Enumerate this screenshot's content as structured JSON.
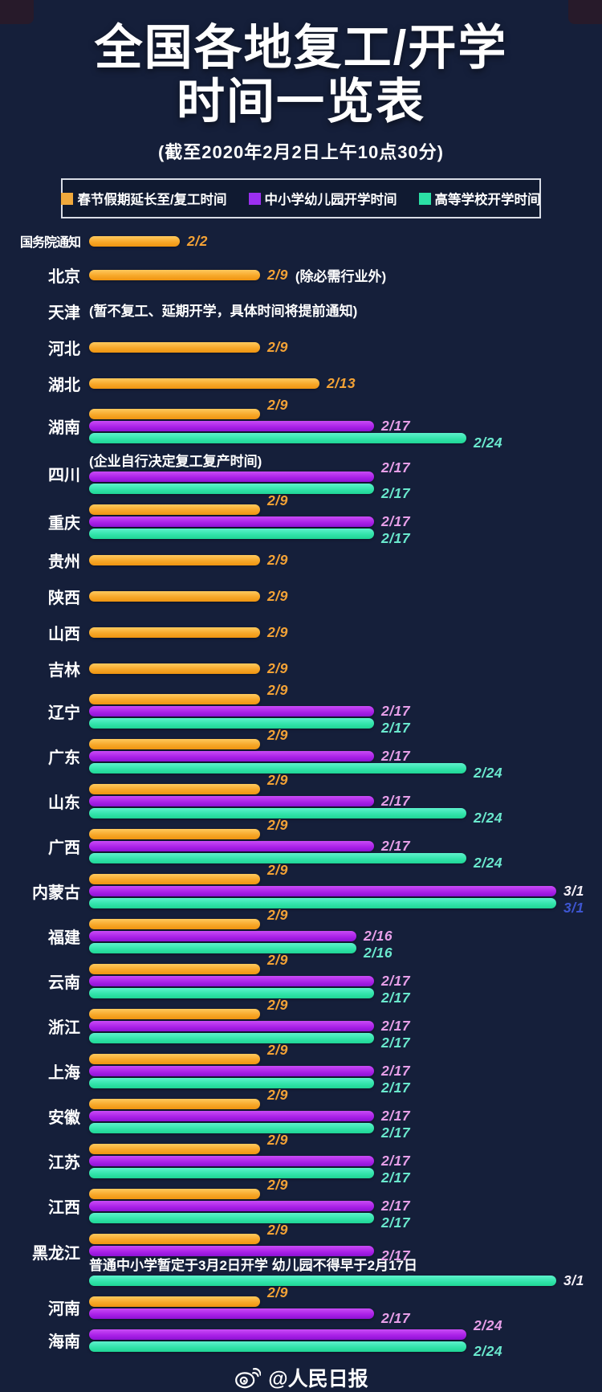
{
  "header": {
    "title_line1": "全国各地复工/开学",
    "title_line2": "时间一览表",
    "subtitle": "(截至2020年2月2日上午10点30分)"
  },
  "footer": {
    "credit": "@人民日报",
    "icon": "weibo-icon"
  },
  "colors": {
    "background": "#151f3a",
    "resume_bar": "#f7a82a",
    "school_bar": "#ab22e8",
    "college_bar": "#2ee3a9",
    "resume_label": "#f3a236",
    "school_label": "#e79fe8",
    "college_label": "#6ae8cd",
    "white_label": "#f3eef6",
    "blue_label": "#3d55cf"
  },
  "chart_data": {
    "type": "bar",
    "title": "全国各地复工/开学时间一览表",
    "as_of": "截至2020年2月2日上午10点30分",
    "legend_position": "top",
    "x_axis_range": [
      "2/2",
      "3/1"
    ],
    "series_legend": [
      {
        "key": "resume",
        "name": "春节假期延长至/复工时间",
        "color": "#f0a93c"
      },
      {
        "key": "school",
        "name": "中小学幼儿园开学时间",
        "color": "#9b2ff0"
      },
      {
        "key": "college",
        "name": "高等学校开学时间",
        "color": "#2be0a5"
      }
    ],
    "rows": [
      {
        "region": "国务院通知",
        "lines": [
          {
            "type": "bar",
            "series": "resume",
            "date": "2/2"
          }
        ]
      },
      {
        "region": "北京",
        "lines": [
          {
            "type": "bar",
            "series": "resume",
            "date": "2/9",
            "suffix": "(除必需行业外)"
          }
        ]
      },
      {
        "region": "天津",
        "lines": [
          {
            "type": "note",
            "text": "(暂不复工、延期开学，具体时间将提前通知)"
          }
        ]
      },
      {
        "region": "河北",
        "lines": [
          {
            "type": "bar",
            "series": "resume",
            "date": "2/9"
          }
        ]
      },
      {
        "region": "湖北",
        "lines": [
          {
            "type": "bar",
            "series": "resume",
            "date": "2/13"
          }
        ]
      },
      {
        "region": "湖南",
        "lines": [
          {
            "type": "bar",
            "series": "resume",
            "date": "2/9"
          },
          {
            "type": "bar",
            "series": "school",
            "date": "2/17"
          },
          {
            "type": "bar",
            "series": "college",
            "date": "2/24"
          }
        ]
      },
      {
        "region": "四川",
        "lines": [
          {
            "type": "note",
            "text": "(企业自行决定复工复产时间)"
          },
          {
            "type": "bar",
            "series": "school",
            "date": "2/17"
          },
          {
            "type": "bar",
            "series": "college",
            "date": "2/17"
          }
        ]
      },
      {
        "region": "重庆",
        "lines": [
          {
            "type": "bar",
            "series": "resume",
            "date": "2/9"
          },
          {
            "type": "bar",
            "series": "school",
            "date": "2/17"
          },
          {
            "type": "bar",
            "series": "college",
            "date": "2/17"
          }
        ]
      },
      {
        "region": "贵州",
        "lines": [
          {
            "type": "bar",
            "series": "resume",
            "date": "2/9"
          }
        ]
      },
      {
        "region": "陕西",
        "lines": [
          {
            "type": "bar",
            "series": "resume",
            "date": "2/9"
          }
        ]
      },
      {
        "region": "山西",
        "lines": [
          {
            "type": "bar",
            "series": "resume",
            "date": "2/9"
          }
        ]
      },
      {
        "region": "吉林",
        "lines": [
          {
            "type": "bar",
            "series": "resume",
            "date": "2/9"
          }
        ]
      },
      {
        "region": "辽宁",
        "lines": [
          {
            "type": "bar",
            "series": "resume",
            "date": "2/9"
          },
          {
            "type": "bar",
            "series": "school",
            "date": "2/17"
          },
          {
            "type": "bar",
            "series": "college",
            "date": "2/17"
          }
        ]
      },
      {
        "region": "广东",
        "lines": [
          {
            "type": "bar",
            "series": "resume",
            "date": "2/9"
          },
          {
            "type": "bar",
            "series": "school",
            "date": "2/17"
          },
          {
            "type": "bar",
            "series": "college",
            "date": "2/24"
          }
        ]
      },
      {
        "region": "山东",
        "lines": [
          {
            "type": "bar",
            "series": "resume",
            "date": "2/9"
          },
          {
            "type": "bar",
            "series": "school",
            "date": "2/17"
          },
          {
            "type": "bar",
            "series": "college",
            "date": "2/24"
          }
        ]
      },
      {
        "region": "广西",
        "lines": [
          {
            "type": "bar",
            "series": "resume",
            "date": "2/9"
          },
          {
            "type": "bar",
            "series": "school",
            "date": "2/17"
          },
          {
            "type": "bar",
            "series": "college",
            "date": "2/24"
          }
        ]
      },
      {
        "region": "内蒙古",
        "lines": [
          {
            "type": "bar",
            "series": "resume",
            "date": "2/9"
          },
          {
            "type": "bar",
            "series": "school",
            "date": "3/1",
            "label_color": "white"
          },
          {
            "type": "bar",
            "series": "college",
            "date": "3/1",
            "label_color": "blue"
          }
        ]
      },
      {
        "region": "福建",
        "lines": [
          {
            "type": "bar",
            "series": "resume",
            "date": "2/9"
          },
          {
            "type": "bar",
            "series": "school",
            "date": "2/16"
          },
          {
            "type": "bar",
            "series": "college",
            "date": "2/16"
          }
        ]
      },
      {
        "region": "云南",
        "lines": [
          {
            "type": "bar",
            "series": "resume",
            "date": "2/9"
          },
          {
            "type": "bar",
            "series": "school",
            "date": "2/17"
          },
          {
            "type": "bar",
            "series": "college",
            "date": "2/17"
          }
        ]
      },
      {
        "region": "浙江",
        "lines": [
          {
            "type": "bar",
            "series": "resume",
            "date": "2/9"
          },
          {
            "type": "bar",
            "series": "school",
            "date": "2/17"
          },
          {
            "type": "bar",
            "series": "college",
            "date": "2/17"
          }
        ]
      },
      {
        "region": "上海",
        "lines": [
          {
            "type": "bar",
            "series": "resume",
            "date": "2/9"
          },
          {
            "type": "bar",
            "series": "school",
            "date": "2/17"
          },
          {
            "type": "bar",
            "series": "college",
            "date": "2/17"
          }
        ]
      },
      {
        "region": "安徽",
        "lines": [
          {
            "type": "bar",
            "series": "resume",
            "date": "2/9"
          },
          {
            "type": "bar",
            "series": "school",
            "date": "2/17"
          },
          {
            "type": "bar",
            "series": "college",
            "date": "2/17"
          }
        ]
      },
      {
        "region": "江苏",
        "lines": [
          {
            "type": "bar",
            "series": "resume",
            "date": "2/9"
          },
          {
            "type": "bar",
            "series": "school",
            "date": "2/17"
          },
          {
            "type": "bar",
            "series": "college",
            "date": "2/17"
          }
        ]
      },
      {
        "region": "江西",
        "lines": [
          {
            "type": "bar",
            "series": "resume",
            "date": "2/9"
          },
          {
            "type": "bar",
            "series": "school",
            "date": "2/17"
          },
          {
            "type": "bar",
            "series": "college",
            "date": "2/17"
          }
        ]
      },
      {
        "region": "黑龙江",
        "lines": [
          {
            "type": "bar",
            "series": "resume",
            "date": "2/9"
          },
          {
            "type": "bar",
            "series": "school",
            "date": "2/17"
          },
          {
            "type": "note",
            "text": "普通中小学暂定于3月2日开学 幼儿园不得早于2月17日"
          },
          {
            "type": "bar",
            "series": "college",
            "date": "3/1",
            "label_color": "white"
          }
        ]
      },
      {
        "region": "河南",
        "lines": [
          {
            "type": "bar",
            "series": "resume",
            "date": "2/9"
          },
          {
            "type": "bar",
            "series": "school",
            "date": "2/17"
          }
        ]
      },
      {
        "region": "海南",
        "lines": [
          {
            "type": "bar",
            "series": "school",
            "date": "2/24"
          },
          {
            "type": "bar",
            "series": "college",
            "date": "2/24"
          }
        ]
      }
    ]
  }
}
